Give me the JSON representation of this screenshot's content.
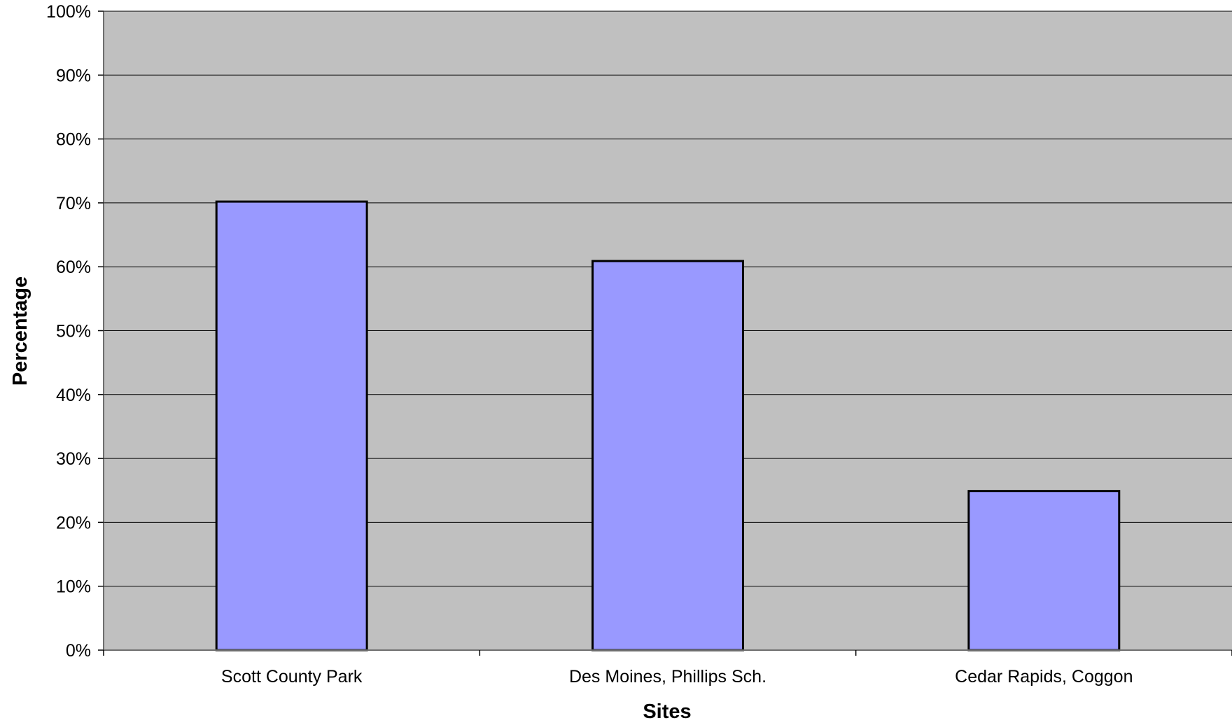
{
  "chart_data": {
    "type": "bar",
    "title": "",
    "xlabel": "Sites",
    "ylabel": "Percentage",
    "categories": [
      "Scott County Park",
      "Des Moines, Phillips Sch.",
      "Cedar Rapids, Coggon"
    ],
    "values": [
      70.2,
      60.9,
      24.9
    ],
    "ylim": [
      0,
      100
    ],
    "yticks": [
      0,
      10,
      20,
      30,
      40,
      50,
      60,
      70,
      80,
      90,
      100
    ],
    "ytick_labels": [
      "0%",
      "10%",
      "20%",
      "30%",
      "40%",
      "50%",
      "60%",
      "70%",
      "80%",
      "90%",
      "100%"
    ],
    "grid": true,
    "legend": "none",
    "colors": {
      "bar_fill": "#9999ff",
      "bar_stroke": "#000000",
      "plot_background": "#c0c0c0",
      "gridline": "#000000"
    }
  }
}
